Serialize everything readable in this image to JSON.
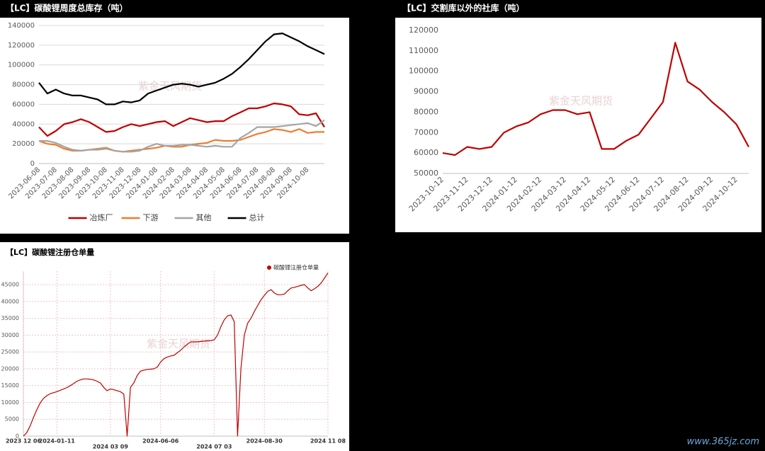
{
  "chart_data": [
    {
      "type": "line",
      "title": "【LC】碳酸锂周度总库存（吨）",
      "watermark": "紫金天风期货",
      "categories": [
        "2023-06-08",
        null,
        "2023-07-08",
        null,
        "2023-08-08",
        null,
        "2023-09-08",
        null,
        "2023-10-08",
        null,
        "2023-11-08",
        null,
        "2023-12-08",
        null,
        "2024-01-08",
        null,
        "2024-02-08",
        null,
        "2024-03-08",
        null,
        "2024-04-08",
        null,
        "2024-05-08",
        null,
        "2024-06-08",
        null,
        "2024-07-08",
        null,
        "2024-08-08",
        null,
        "2024-09-08",
        null,
        "2024-10-08",
        null,
        null
      ],
      "series": [
        {
          "name": "冶炼厂",
          "color": "#c00000",
          "values": [
            37000,
            28000,
            33000,
            40000,
            42000,
            45000,
            42000,
            37000,
            32000,
            33000,
            37000,
            40000,
            38000,
            40000,
            42000,
            43000,
            38000,
            42000,
            46000,
            44000,
            42000,
            43000,
            43000,
            48000,
            52000,
            56000,
            56000,
            58000,
            61000,
            60000,
            58000,
            50000,
            49000,
            51000,
            37000
          ]
        },
        {
          "name": "下游",
          "color": "#ed7d31",
          "values": [
            23000,
            20000,
            19000,
            15000,
            13000,
            13000,
            14000,
            15000,
            16000,
            13000,
            12000,
            13000,
            14000,
            15000,
            16000,
            18000,
            17000,
            17000,
            19000,
            20000,
            21000,
            24000,
            23000,
            23000,
            24000,
            27000,
            30000,
            32000,
            35000,
            34000,
            32000,
            35000,
            31000,
            32000,
            32000
          ]
        },
        {
          "name": "其他",
          "color": "#a5a5a5",
          "values": [
            23000,
            23000,
            21000,
            17000,
            14000,
            13000,
            14000,
            14000,
            15000,
            13000,
            12000,
            12000,
            13000,
            17000,
            20000,
            18000,
            18000,
            19000,
            19000,
            18000,
            17000,
            18000,
            17000,
            17000,
            26000,
            31000,
            37000,
            37000,
            37000,
            38000,
            39000,
            40000,
            41000,
            38000,
            44000
          ]
        },
        {
          "name": "总计",
          "color": "#000000",
          "values": [
            82000,
            71000,
            75000,
            71000,
            69000,
            69000,
            67000,
            65000,
            60000,
            60000,
            63000,
            62000,
            64000,
            71000,
            74000,
            77000,
            80000,
            81000,
            80000,
            78000,
            80000,
            82000,
            86000,
            91000,
            98000,
            106000,
            115000,
            124000,
            131000,
            132000,
            128000,
            124000,
            119000,
            115000,
            111000
          ]
        }
      ],
      "ylim": [
        0,
        140000
      ],
      "yticks": [
        0,
        20000,
        40000,
        60000,
        80000,
        100000,
        120000,
        140000
      ],
      "grid": true,
      "legend": "bottom"
    },
    {
      "type": "line",
      "title": "【LC】交割库以外的社库（吨）",
      "watermark": "紫金天风期货",
      "categories": [
        "2023-10-12",
        null,
        "2023-11-12",
        null,
        "2023-12-12",
        null,
        "2024-01-12",
        null,
        "2024-02-12",
        null,
        "2024-03-12",
        null,
        "2024-04-12",
        null,
        "2024-05-12",
        null,
        "2024-06-12",
        null,
        "2024-07-12",
        null,
        "2024-08-12",
        null,
        "2024-09-12",
        null,
        "2024-10-12",
        null
      ],
      "series": [
        {
          "color": "#c00000",
          "values": [
            60000,
            59000,
            63000,
            62000,
            63000,
            70000,
            73000,
            75000,
            79000,
            81000,
            81000,
            79000,
            80000,
            62000,
            62000,
            66000,
            69000,
            77000,
            85000,
            114000,
            95000,
            91000,
            85000,
            80000,
            74000,
            63000
          ]
        }
      ],
      "ylim": [
        50000,
        120000
      ],
      "yticks": [
        50000,
        60000,
        70000,
        80000,
        90000,
        100000,
        110000,
        120000
      ],
      "grid": false
    },
    {
      "type": "line",
      "title": "【LC】碳酸锂注册仓单量",
      "watermark": "紫金天风期货",
      "categories": [
        "2023 12 06",
        null,
        null,
        null,
        null,
        null,
        null,
        null,
        null,
        null,
        "2024-01-11",
        null,
        null,
        null,
        null,
        null,
        null,
        null,
        null,
        null,
        null,
        null,
        null,
        null,
        null,
        null,
        "2024 03 09",
        null,
        null,
        null,
        null,
        null,
        null,
        null,
        null,
        null,
        null,
        null,
        null,
        null,
        null,
        "2024-06-06",
        null,
        null,
        null,
        null,
        null,
        null,
        null,
        null,
        null,
        null,
        null,
        null,
        null,
        null,
        null,
        "2024 07 03",
        null,
        null,
        null,
        null,
        null,
        null,
        null,
        null,
        null,
        null,
        null,
        null,
        null,
        null,
        "2024-08-30",
        null,
        null,
        null,
        null,
        null,
        null,
        null,
        null,
        null,
        null,
        null,
        null,
        null,
        null,
        null,
        null,
        null,
        null,
        "2024 11 08"
      ],
      "series": [
        {
          "name": "碳酸锂注册仓单量",
          "color": "#c00000",
          "values": [
            0,
            1000,
            3000,
            5500,
            7800,
            9800,
            11200,
            12000,
            12600,
            12900,
            13200,
            13600,
            14000,
            14400,
            15000,
            15600,
            16300,
            16700,
            17000,
            17000,
            16900,
            16700,
            16300,
            15800,
            14500,
            13500,
            14000,
            13800,
            13500,
            13200,
            12500,
            0,
            14500,
            15800,
            18000,
            19300,
            19600,
            19800,
            19900,
            20000,
            20500,
            22000,
            23000,
            23500,
            23800,
            24000,
            24800,
            25500,
            26500,
            27300,
            28000,
            28000,
            28000,
            28100,
            28200,
            28300,
            28400,
            28600,
            30000,
            32500,
            34500,
            35700,
            36000,
            34000,
            0,
            20000,
            30000,
            33500,
            35000,
            37000,
            38800,
            40500,
            41800,
            43000,
            43500,
            42500,
            42000,
            42000,
            42200,
            43200,
            44000,
            44200,
            44500,
            44800,
            45000,
            44000,
            43200,
            43800,
            44500,
            45500,
            47000,
            48500
          ]
        }
      ],
      "ylim": [
        0,
        49000
      ],
      "yticks": [
        0,
        5000,
        10000,
        15000,
        20000,
        25000,
        30000,
        35000,
        40000,
        45000
      ],
      "grid": true,
      "legend": "top-right"
    }
  ],
  "footer": "www.365jz.com"
}
